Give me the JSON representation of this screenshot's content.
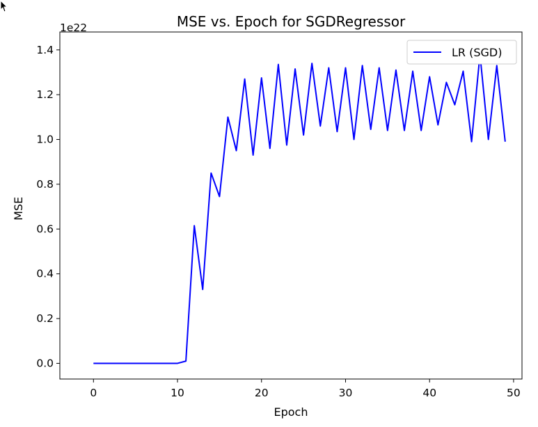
{
  "chart_data": {
    "type": "line",
    "title": "MSE vs. Epoch for SGDRegressor",
    "xlabel": "Epoch",
    "ylabel": "MSE",
    "y_offset_label": "1e22",
    "y_scale_factor": 1e+22,
    "xlim": [
      -4,
      51
    ],
    "ylim": [
      -0.07,
      1.48
    ],
    "xticks": [
      0,
      10,
      20,
      30,
      40,
      50
    ],
    "xtick_labels": [
      "0",
      "10",
      "20",
      "30",
      "40",
      "50"
    ],
    "yticks": [
      0.0,
      0.2,
      0.4,
      0.6,
      0.8,
      1.0,
      1.2,
      1.4
    ],
    "ytick_labels": [
      "0.0",
      "0.2",
      "0.4",
      "0.6",
      "0.8",
      "1.0",
      "1.2",
      "1.4"
    ],
    "grid": false,
    "legend": {
      "position": "top-right"
    },
    "series": [
      {
        "name": "LR (SGD)",
        "color": "#0000ff",
        "x": [
          0,
          1,
          2,
          3,
          4,
          5,
          6,
          7,
          8,
          9,
          10,
          11,
          12,
          13,
          14,
          15,
          16,
          17,
          18,
          19,
          20,
          21,
          22,
          23,
          24,
          25,
          26,
          27,
          28,
          29,
          30,
          31,
          32,
          33,
          34,
          35,
          36,
          37,
          38,
          39,
          40,
          41,
          42,
          43,
          44,
          45,
          46,
          47,
          48,
          49
        ],
        "y": [
          0,
          0,
          0,
          0,
          0,
          0,
          0,
          0,
          0,
          0,
          0,
          0.01,
          0.615,
          0.33,
          0.85,
          0.745,
          1.1,
          0.95,
          1.27,
          0.93,
          1.275,
          0.96,
          1.335,
          0.975,
          1.315,
          1.02,
          1.34,
          1.06,
          1.32,
          1.035,
          1.32,
          1.0,
          1.33,
          1.045,
          1.32,
          1.04,
          1.31,
          1.04,
          1.305,
          1.04,
          1.28,
          1.065,
          1.255,
          1.155,
          1.305,
          0.99,
          1.38,
          1.0,
          1.33,
          0.99
        ]
      }
    ]
  }
}
